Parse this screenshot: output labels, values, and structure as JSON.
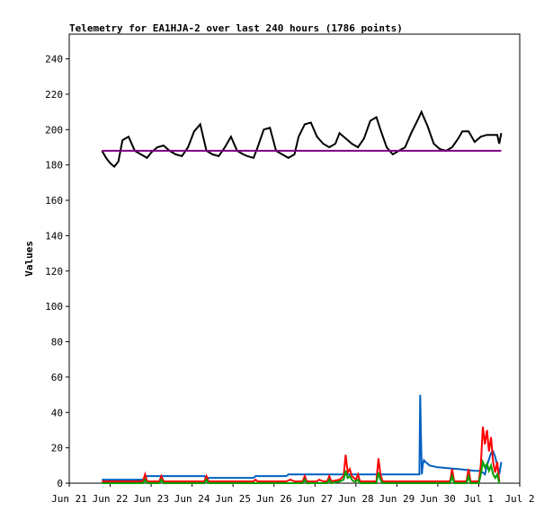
{
  "chart_data": {
    "type": "line",
    "title": "Telemetry for EA1HJA-2 over last 240 hours (1786 points)",
    "xlabel": "",
    "ylabel": "Values",
    "ylim": [
      0,
      254
    ],
    "yticks": [
      0,
      20,
      40,
      60,
      80,
      100,
      120,
      140,
      160,
      180,
      200,
      220,
      240
    ],
    "xlim": [
      0,
      11
    ],
    "xticks": [
      {
        "x": 0,
        "label": "Jun 21"
      },
      {
        "x": 1,
        "label": "Jun 22"
      },
      {
        "x": 2,
        "label": "Jun 23"
      },
      {
        "x": 3,
        "label": "Jun 24"
      },
      {
        "x": 4,
        "label": "Jun 25"
      },
      {
        "x": 5,
        "label": "Jun 26"
      },
      {
        "x": 6,
        "label": "Jun 27"
      },
      {
        "x": 7,
        "label": "Jun 28"
      },
      {
        "x": 8,
        "label": "Jun 29"
      },
      {
        "x": 9,
        "label": "Jun 30"
      },
      {
        "x": 10,
        "label": "Jul 1"
      },
      {
        "x": 11,
        "label": "Jul 2"
      }
    ],
    "grid": false,
    "legend": "none",
    "series": [
      {
        "color": "#000000",
        "x": [
          0.8,
          0.9,
          1.0,
          1.1,
          1.2,
          1.3,
          1.45,
          1.6,
          1.75,
          1.9,
          2.0,
          2.15,
          2.3,
          2.45,
          2.6,
          2.75,
          2.9,
          3.05,
          3.2,
          3.35,
          3.5,
          3.65,
          3.8,
          3.95,
          4.1,
          4.25,
          4.35,
          4.5,
          4.6,
          4.75,
          4.9,
          5.05,
          5.2,
          5.35,
          5.5,
          5.6,
          5.75,
          5.9,
          6.05,
          6.2,
          6.35,
          6.5,
          6.6,
          6.75,
          6.9,
          7.05,
          7.2,
          7.35,
          7.5,
          7.6,
          7.75,
          7.9,
          8.05,
          8.2,
          8.35,
          8.5,
          8.6,
          8.75,
          8.9,
          9.05,
          9.2,
          9.35,
          9.5,
          9.6,
          9.75,
          9.9,
          10.05,
          10.2,
          10.35,
          10.45,
          10.5,
          10.55
        ],
        "y": [
          188,
          184,
          181,
          179,
          182,
          194,
          196,
          188,
          186,
          184,
          187,
          190,
          191,
          188,
          186,
          185,
          190,
          199,
          203,
          188,
          186,
          185,
          190,
          196,
          188,
          186,
          185,
          184,
          190,
          200,
          201,
          188,
          186,
          184,
          186,
          196,
          203,
          204,
          196,
          192,
          190,
          192,
          198,
          195,
          192,
          190,
          195,
          205,
          207,
          200,
          190,
          186,
          188,
          190,
          198,
          205,
          210,
          202,
          192,
          189,
          188,
          190,
          195,
          199,
          199,
          193,
          196,
          197,
          197,
          197,
          192,
          198
        ]
      },
      {
        "color": "#800080",
        "x": [
          0.8,
          10.55
        ],
        "y": [
          188,
          188
        ]
      },
      {
        "color": "#0060c0",
        "x": [
          0.8,
          1.8,
          1.85,
          3.3,
          3.35,
          4.5,
          4.55,
          5.3,
          5.35,
          7.9,
          7.95,
          8.55,
          8.57,
          8.59,
          8.61,
          8.63,
          8.66,
          8.7,
          8.8,
          9.0,
          9.5,
          9.9,
          10.0,
          10.1,
          10.15,
          10.2,
          10.3,
          10.35,
          10.4,
          10.45,
          10.5,
          10.55
        ],
        "y": [
          2,
          2,
          4,
          4,
          3,
          3,
          4,
          4,
          5,
          5,
          5,
          5,
          50,
          26,
          5,
          10,
          13,
          12,
          10,
          9,
          8,
          7,
          7,
          6,
          5,
          10,
          17,
          18,
          15,
          10,
          5,
          12
        ]
      },
      {
        "color": "#ff0000",
        "x": [
          0.8,
          1.8,
          1.85,
          1.9,
          2.2,
          2.25,
          2.3,
          3.3,
          3.35,
          3.4,
          4.5,
          4.55,
          4.6,
          5.3,
          5.4,
          5.5,
          5.7,
          5.75,
          5.8,
          6.05,
          6.1,
          6.2,
          6.3,
          6.35,
          6.4,
          6.6,
          6.7,
          6.75,
          6.8,
          6.85,
          6.9,
          6.95,
          7.0,
          7.05,
          7.1,
          7.5,
          7.55,
          7.6,
          7.65,
          8.1,
          8.5,
          8.7,
          9.3,
          9.35,
          9.4,
          9.7,
          9.75,
          9.8,
          10.0,
          10.05,
          10.1,
          10.15,
          10.2,
          10.25,
          10.3,
          10.35,
          10.4,
          10.45,
          10.5
        ],
        "y": [
          1,
          1,
          5,
          1,
          1,
          4,
          1,
          1,
          4,
          1,
          1,
          2,
          1,
          1,
          2,
          1,
          1,
          4,
          1,
          1,
          2,
          1,
          1,
          4,
          1,
          2,
          4,
          16,
          6,
          8,
          4,
          3,
          2,
          5,
          1,
          1,
          14,
          5,
          1,
          1,
          1,
          1,
          1,
          8,
          1,
          1,
          8,
          1,
          1,
          10,
          32,
          22,
          30,
          18,
          26,
          12,
          6,
          12,
          1
        ]
      },
      {
        "color": "#00a000",
        "x": [
          0.8,
          1.8,
          1.85,
          1.9,
          2.2,
          2.25,
          2.3,
          3.3,
          3.35,
          3.4,
          4.5,
          5.7,
          5.75,
          5.8,
          6.3,
          6.35,
          6.4,
          6.6,
          6.7,
          6.75,
          6.8,
          6.85,
          6.9,
          6.95,
          7.0,
          7.05,
          7.1,
          7.5,
          7.55,
          7.6,
          7.65,
          8.5,
          8.7,
          9.3,
          9.35,
          9.4,
          9.7,
          9.75,
          9.8,
          10.0,
          10.05,
          10.1,
          10.15,
          10.2,
          10.25,
          10.3,
          10.35,
          10.4,
          10.45,
          10.5
        ],
        "y": [
          0,
          0,
          2,
          0,
          0,
          2,
          0,
          0,
          2,
          0,
          0,
          0,
          2,
          0,
          0,
          2,
          0,
          1,
          2,
          7,
          3,
          4,
          2,
          1,
          1,
          2,
          0,
          0,
          6,
          2,
          0,
          0,
          0,
          0,
          4,
          0,
          0,
          4,
          0,
          0,
          5,
          12,
          9,
          11,
          7,
          10,
          5,
          3,
          5,
          0
        ]
      }
    ]
  }
}
